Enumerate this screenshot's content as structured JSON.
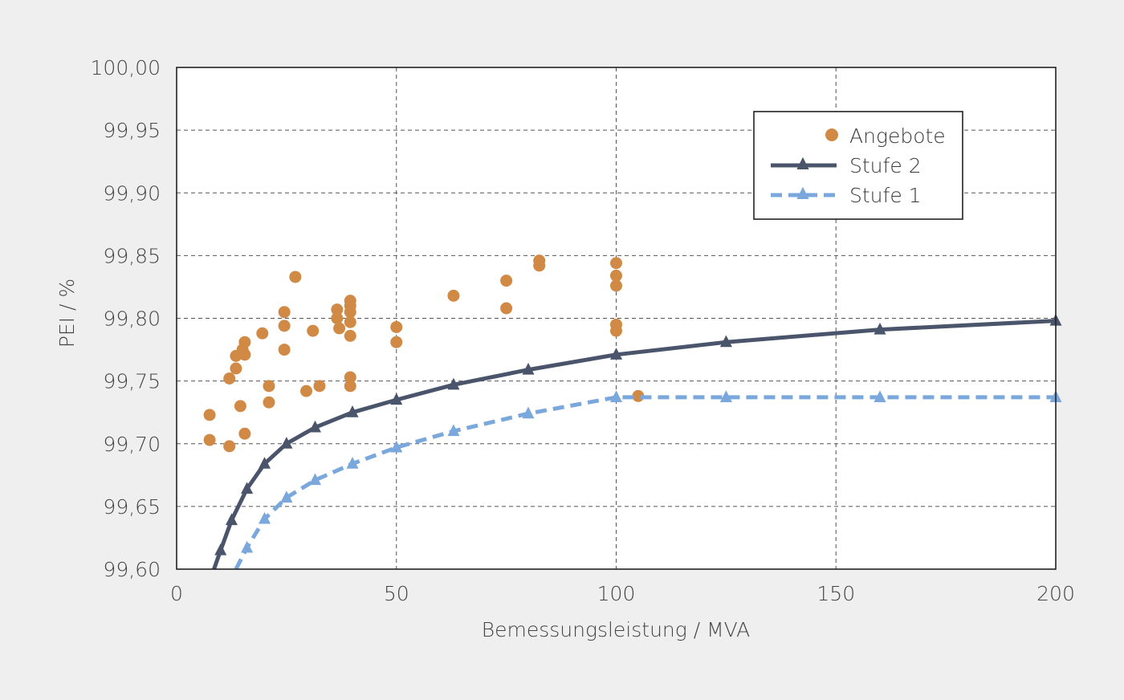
{
  "chart_data": {
    "type": "scatter",
    "xlabel": "Bemessungsleistung / MVA",
    "ylabel": "PEI / %",
    "xlim": [
      0,
      200
    ],
    "ylim": [
      99.6,
      100.0
    ],
    "x_ticks": [
      0,
      50,
      100,
      150,
      200
    ],
    "x_tick_labels": [
      "0",
      "50",
      "100",
      "150",
      "200"
    ],
    "y_ticks": [
      99.6,
      99.65,
      99.7,
      99.75,
      99.8,
      99.85,
      99.9,
      99.95,
      100.0
    ],
    "y_tick_labels": [
      "99,60",
      "99,65",
      "99,70",
      "99,75",
      "99,80",
      "99,85",
      "99,90",
      "99,95",
      "100,00"
    ],
    "grid": true,
    "legend_position": "top-right",
    "series": [
      {
        "name": "Angebote",
        "kind": "scatter",
        "color": "#d08a45",
        "points": [
          [
            7.5,
            99.723
          ],
          [
            7.5,
            99.703
          ],
          [
            12,
            99.752
          ],
          [
            12,
            99.698
          ],
          [
            13.5,
            99.76
          ],
          [
            13.5,
            99.77
          ],
          [
            14.5,
            99.73
          ],
          [
            15,
            99.775
          ],
          [
            15.5,
            99.781
          ],
          [
            15.5,
            99.771
          ],
          [
            15.5,
            99.708
          ],
          [
            19.5,
            99.788
          ],
          [
            21,
            99.746
          ],
          [
            21,
            99.733
          ],
          [
            24.5,
            99.805
          ],
          [
            24.5,
            99.794
          ],
          [
            24.5,
            99.775
          ],
          [
            27,
            99.833
          ],
          [
            29.5,
            99.742
          ],
          [
            31,
            99.79
          ],
          [
            32.5,
            99.746
          ],
          [
            36.5,
            99.807
          ],
          [
            36.5,
            99.8
          ],
          [
            37,
            99.792
          ],
          [
            39.5,
            99.814
          ],
          [
            39.5,
            99.81
          ],
          [
            39.5,
            99.805
          ],
          [
            39.5,
            99.797
          ],
          [
            39.5,
            99.786
          ],
          [
            39.5,
            99.753
          ],
          [
            39.5,
            99.746
          ],
          [
            50,
            99.793
          ],
          [
            50,
            99.781
          ],
          [
            63,
            99.818
          ],
          [
            75,
            99.83
          ],
          [
            75,
            99.808
          ],
          [
            82.5,
            99.846
          ],
          [
            82.5,
            99.842
          ],
          [
            100,
            99.844
          ],
          [
            100,
            99.834
          ],
          [
            100,
            99.826
          ],
          [
            100,
            99.795
          ],
          [
            100,
            99.79
          ],
          [
            105,
            99.738
          ]
        ]
      },
      {
        "name": "Stufe 2",
        "kind": "line",
        "color": "#4a546a",
        "style": "solid",
        "curve_start": [
          8.5,
          99.6
        ],
        "points": [
          [
            10,
            99.615
          ],
          [
            12.5,
            99.639
          ],
          [
            16,
            99.664
          ],
          [
            20,
            99.684
          ],
          [
            25,
            99.7
          ],
          [
            31.5,
            99.713
          ],
          [
            40,
            99.725
          ],
          [
            50,
            99.735
          ],
          [
            63,
            99.747
          ],
          [
            80,
            99.759
          ],
          [
            100,
            99.771
          ],
          [
            125,
            99.781
          ],
          [
            160,
            99.791
          ],
          [
            200,
            99.798
          ]
        ]
      },
      {
        "name": "Stufe 1",
        "kind": "line",
        "color": "#7aa7dc",
        "style": "dashed",
        "curve_start": [
          13.5,
          99.6
        ],
        "points": [
          [
            16,
            99.617
          ],
          [
            20,
            99.64
          ],
          [
            25,
            99.657
          ],
          [
            31.5,
            99.671
          ],
          [
            40,
            99.684
          ],
          [
            50,
            99.697
          ],
          [
            63,
            99.71
          ],
          [
            80,
            99.724
          ],
          [
            100,
            99.737
          ],
          [
            125,
            99.737
          ],
          [
            160,
            99.737
          ],
          [
            200,
            99.737
          ]
        ]
      }
    ]
  }
}
